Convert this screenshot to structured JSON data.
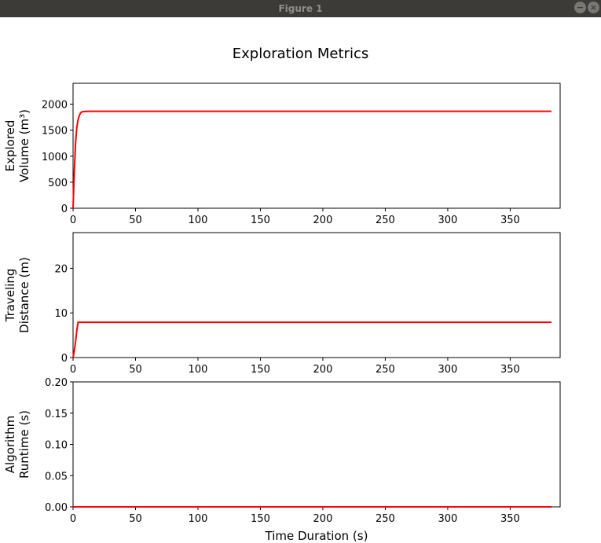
{
  "window": {
    "title": "Figure 1",
    "minimize_glyph": "−",
    "close_glyph": "×"
  },
  "figure": {
    "suptitle": "Exploration Metrics",
    "line_color": "#ff0000"
  },
  "chart_data": [
    {
      "type": "line",
      "title": "",
      "ylabel_lines": [
        "Explored",
        "Volume (m³)"
      ],
      "xlabel": "",
      "xlim": [
        0,
        390
      ],
      "ylim": [
        0,
        2400
      ],
      "xticks": [
        0,
        50,
        100,
        150,
        200,
        250,
        300,
        350
      ],
      "yticks": [
        0,
        500,
        1000,
        1500,
        2000
      ],
      "ytick_labels": [
        "0",
        "500",
        "1000",
        "1500",
        "2000"
      ],
      "grid": false,
      "series": [
        {
          "x": [
            0,
            1,
            2,
            3,
            4,
            5,
            6,
            7,
            8,
            10,
            15,
            20,
            50,
            100,
            200,
            300,
            383
          ],
          "y": [
            0,
            700,
            1250,
            1550,
            1700,
            1780,
            1830,
            1850,
            1855,
            1860,
            1862,
            1862,
            1862,
            1862,
            1862,
            1862,
            1862
          ]
        }
      ]
    },
    {
      "type": "line",
      "title": "",
      "ylabel_lines": [
        "Traveling",
        "Distance (m)"
      ],
      "xlabel": "",
      "xlim": [
        0,
        390
      ],
      "ylim": [
        0,
        28
      ],
      "xticks": [
        0,
        50,
        100,
        150,
        200,
        250,
        300,
        350
      ],
      "yticks": [
        0,
        10,
        20
      ],
      "ytick_labels": [
        "0",
        "10",
        "20"
      ],
      "grid": false,
      "series": [
        {
          "x": [
            0,
            1,
            2,
            3,
            4,
            5,
            50,
            100,
            200,
            300,
            383
          ],
          "y": [
            0,
            1.5,
            3.5,
            6.0,
            7.9,
            7.9,
            7.9,
            7.9,
            7.9,
            7.9,
            7.9
          ]
        }
      ]
    },
    {
      "type": "line",
      "title": "",
      "ylabel_lines": [
        "Algorithm",
        "Runtime (s)"
      ],
      "xlabel": "Time Duration (s)",
      "xlim": [
        0,
        390
      ],
      "ylim": [
        0,
        0.2
      ],
      "xticks": [
        0,
        50,
        100,
        150,
        200,
        250,
        300,
        350
      ],
      "yticks": [
        0,
        0.05,
        0.1,
        0.15,
        0.2
      ],
      "ytick_labels": [
        "0.00",
        "0.05",
        "0.10",
        "0.15",
        "0.20"
      ],
      "grid": false,
      "series": [
        {
          "x": [
            0,
            383
          ],
          "y": [
            0,
            0
          ]
        }
      ]
    }
  ]
}
